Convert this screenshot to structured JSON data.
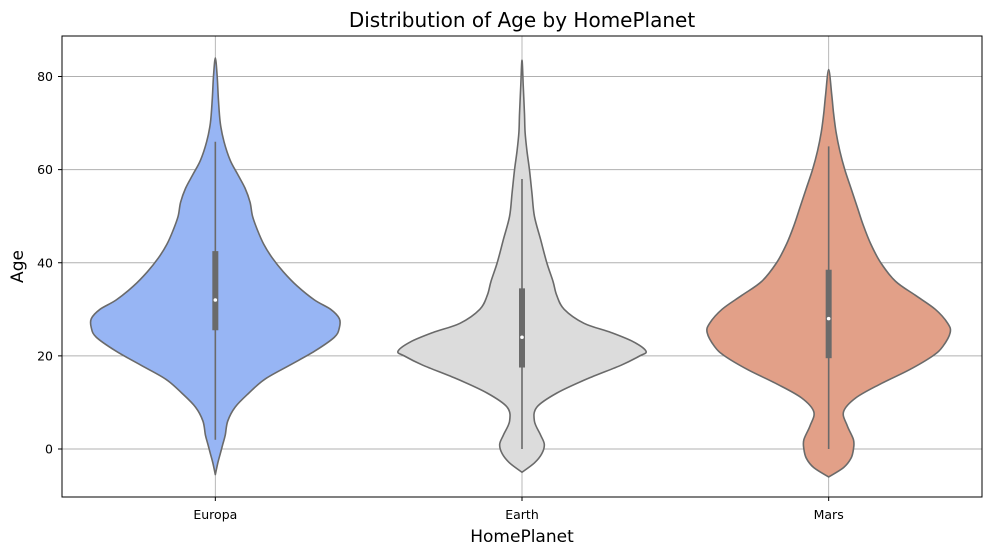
{
  "chart_data": {
    "type": "violin",
    "title": "Distribution of Age by HomePlanet",
    "xlabel": "HomePlanet",
    "ylabel": "Age",
    "categories": [
      "Europa",
      "Earth",
      "Mars"
    ],
    "ylim": [
      -10,
      88
    ],
    "yticks": [
      0,
      20,
      40,
      60,
      80
    ],
    "grid": true,
    "colors": {
      "Europa": "#97b5f4",
      "Earth": "#dcdcdc",
      "Mars": "#e2a088",
      "outline": "#6a6a6a",
      "grid": "#b0b0b0"
    },
    "series": [
      {
        "category": "Europa",
        "whisker": [
          2,
          66
        ],
        "quartiles": [
          25.5,
          42.5
        ],
        "median": 32,
        "extent": [
          -5.5,
          84
        ],
        "density": [
          [
            -5.5,
            0.0
          ],
          [
            -3,
            0.02
          ],
          [
            -1,
            0.04
          ],
          [
            1,
            0.06
          ],
          [
            3,
            0.08
          ],
          [
            6,
            0.1
          ],
          [
            9,
            0.16
          ],
          [
            12,
            0.27
          ],
          [
            15,
            0.4
          ],
          [
            18,
            0.6
          ],
          [
            21,
            0.8
          ],
          [
            24,
            0.96
          ],
          [
            26,
            1.0
          ],
          [
            28,
            1.0
          ],
          [
            30,
            0.93
          ],
          [
            32,
            0.8
          ],
          [
            35,
            0.66
          ],
          [
            38,
            0.55
          ],
          [
            41,
            0.46
          ],
          [
            44,
            0.39
          ],
          [
            47,
            0.34
          ],
          [
            50,
            0.3
          ],
          [
            53,
            0.28
          ],
          [
            56,
            0.24
          ],
          [
            59,
            0.18
          ],
          [
            62,
            0.12
          ],
          [
            66,
            0.07
          ],
          [
            70,
            0.04
          ],
          [
            75,
            0.025
          ],
          [
            80,
            0.015
          ],
          [
            84,
            0.0
          ]
        ]
      },
      {
        "category": "Earth",
        "whisker": [
          0,
          58
        ],
        "quartiles": [
          17.5,
          34.5
        ],
        "median": 24,
        "extent": [
          -5,
          83.5
        ],
        "density": [
          [
            -5,
            0.0
          ],
          [
            -3,
            0.1
          ],
          [
            -1,
            0.16
          ],
          [
            1,
            0.18
          ],
          [
            3,
            0.15
          ],
          [
            6,
            0.1
          ],
          [
            9,
            0.12
          ],
          [
            12,
            0.28
          ],
          [
            15,
            0.52
          ],
          [
            18,
            0.8
          ],
          [
            20,
            0.95
          ],
          [
            21,
            1.0
          ],
          [
            23,
            0.9
          ],
          [
            25,
            0.72
          ],
          [
            27,
            0.5
          ],
          [
            30,
            0.34
          ],
          [
            33,
            0.28
          ],
          [
            36,
            0.25
          ],
          [
            40,
            0.2
          ],
          [
            45,
            0.15
          ],
          [
            50,
            0.1
          ],
          [
            55,
            0.08
          ],
          [
            60,
            0.06
          ],
          [
            64,
            0.04
          ],
          [
            68,
            0.025
          ],
          [
            72,
            0.02
          ],
          [
            78,
            0.01
          ],
          [
            83.5,
            0.0
          ]
        ]
      },
      {
        "category": "Mars",
        "whisker": [
          0,
          65
        ],
        "quartiles": [
          19.5,
          38.5
        ],
        "median": 28,
        "extent": [
          -6,
          81.5
        ],
        "density": [
          [
            -6,
            0.0
          ],
          [
            -4,
            0.12
          ],
          [
            -2,
            0.18
          ],
          [
            0,
            0.2
          ],
          [
            2,
            0.2
          ],
          [
            5,
            0.15
          ],
          [
            8,
            0.12
          ],
          [
            11,
            0.22
          ],
          [
            14,
            0.42
          ],
          [
            17,
            0.65
          ],
          [
            20,
            0.84
          ],
          [
            22,
            0.92
          ],
          [
            25,
            0.98
          ],
          [
            27,
            0.96
          ],
          [
            30,
            0.86
          ],
          [
            33,
            0.7
          ],
          [
            36,
            0.54
          ],
          [
            40,
            0.42
          ],
          [
            44,
            0.34
          ],
          [
            48,
            0.28
          ],
          [
            52,
            0.23
          ],
          [
            56,
            0.18
          ],
          [
            60,
            0.13
          ],
          [
            64,
            0.09
          ],
          [
            68,
            0.06
          ],
          [
            72,
            0.04
          ],
          [
            76,
            0.025
          ],
          [
            81.5,
            0.0
          ]
        ]
      }
    ]
  }
}
